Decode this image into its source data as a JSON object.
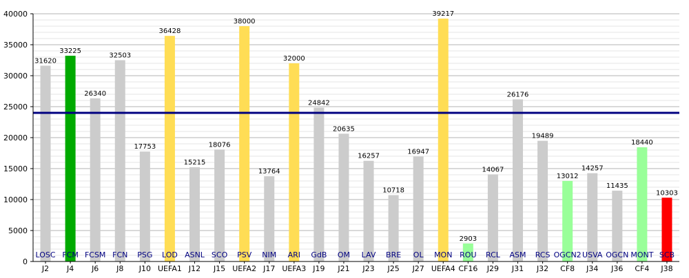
{
  "chart_data": {
    "type": "bar",
    "title": "",
    "xlabel": "",
    "ylabel": "",
    "ylim": [
      0,
      40000
    ],
    "yticks": [
      0,
      5000,
      10000,
      15000,
      20000,
      25000,
      30000,
      35000,
      40000
    ],
    "grid": true,
    "average_line": 24000,
    "categories": [
      "J2",
      "J4",
      "J6",
      "J8",
      "J10",
      "UEFA1",
      "J12",
      "J15",
      "UEFA2",
      "J17",
      "UEFA3",
      "J19",
      "J21",
      "J23",
      "J25",
      "J27",
      "UEFA4",
      "CF16",
      "J29",
      "J31",
      "J32",
      "CF8",
      "J34",
      "J36",
      "CF4",
      "J38"
    ],
    "bar_labels": [
      "LOSC",
      "FCM",
      "FCSM",
      "FCN",
      "PSG",
      "LOD",
      "ASNL",
      "SCO",
      "PSV",
      "NIM",
      "ARI",
      "GdB",
      "OM",
      "LAV",
      "BRE",
      "OL",
      "MON",
      "ROU",
      "RCL",
      "ASM",
      "RCS",
      "OGCN2",
      "USVA",
      "OGCN",
      "MONT",
      "SCB"
    ],
    "values": [
      31620,
      33225,
      26340,
      32503,
      17753,
      36428,
      15215,
      18076,
      38000,
      13764,
      32000,
      24842,
      20635,
      16257,
      10718,
      16947,
      39217,
      2903,
      14067,
      26176,
      19489,
      13012,
      14257,
      11435,
      18440,
      10303
    ],
    "colors": [
      "#cccccc",
      "#00aa00",
      "#cccccc",
      "#cccccc",
      "#cccccc",
      "#ffdd55",
      "#cccccc",
      "#cccccc",
      "#ffdd55",
      "#cccccc",
      "#ffdd55",
      "#cccccc",
      "#cccccc",
      "#cccccc",
      "#cccccc",
      "#cccccc",
      "#ffdd55",
      "#99ff99",
      "#cccccc",
      "#cccccc",
      "#cccccc",
      "#99ff99",
      "#cccccc",
      "#cccccc",
      "#99ff99",
      "#ff0000"
    ],
    "average_line_color": "#000080",
    "bar_label_color": "#000080"
  }
}
